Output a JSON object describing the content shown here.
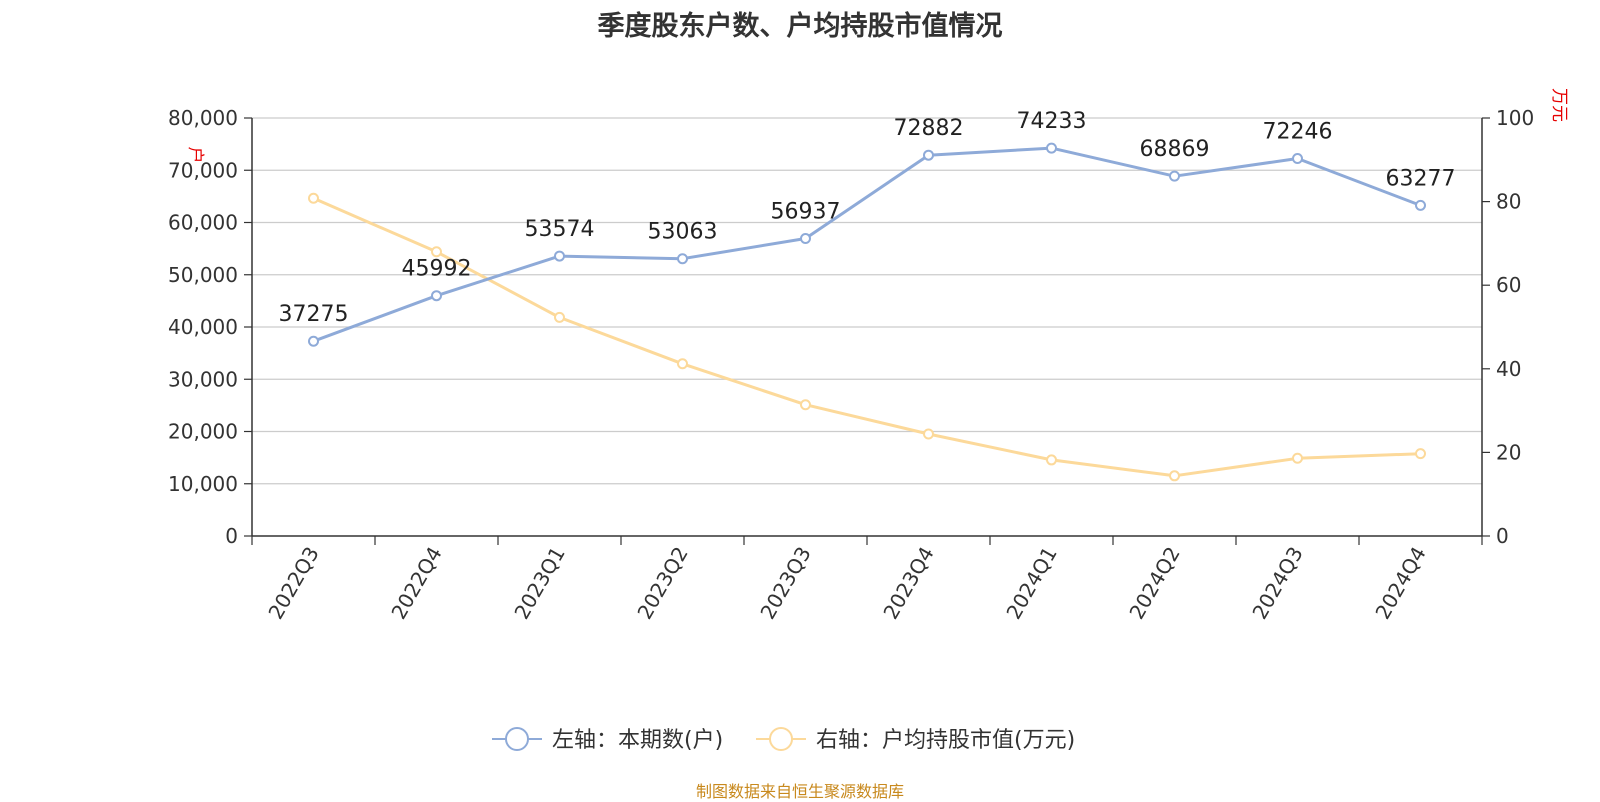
{
  "chart_data": {
    "type": "line",
    "title": "季度股东户数、户均持股市值情况",
    "categories": [
      "2022Q3",
      "2022Q4",
      "2023Q1",
      "2023Q2",
      "2023Q3",
      "2023Q4",
      "2024Q1",
      "2024Q2",
      "2024Q3",
      "2024Q4"
    ],
    "series": [
      {
        "name": "左轴：本期数(户)",
        "axis": "left",
        "color": "#8eaad8",
        "values": [
          37275,
          45992,
          53574,
          53063,
          56937,
          72882,
          74233,
          68869,
          72246,
          63277
        ],
        "labels": [
          "37275",
          "45992",
          "53574",
          "53063",
          "56937",
          "72882",
          "74233",
          "68869",
          "72246",
          "63277"
        ]
      },
      {
        "name": "右轴：户均持股市值(万元)",
        "axis": "right",
        "color": "#fcd99a",
        "values": [
          80.8,
          68.0,
          52.3,
          41.2,
          31.4,
          24.4,
          18.2,
          14.4,
          18.6,
          19.7
        ]
      }
    ],
    "left_axis": {
      "unit": "户",
      "ylim": [
        0,
        80000
      ],
      "ticks": [
        "0",
        "10,000",
        "20,000",
        "30,000",
        "40,000",
        "50,000",
        "60,000",
        "70,000",
        "80,000"
      ]
    },
    "right_axis": {
      "unit": "万元",
      "ylim": [
        0,
        100
      ],
      "ticks": [
        "0",
        "20",
        "40",
        "60",
        "80",
        "100"
      ]
    },
    "grid": true,
    "legend_position": "bottom"
  },
  "source": "制图数据来自恒生聚源数据库"
}
